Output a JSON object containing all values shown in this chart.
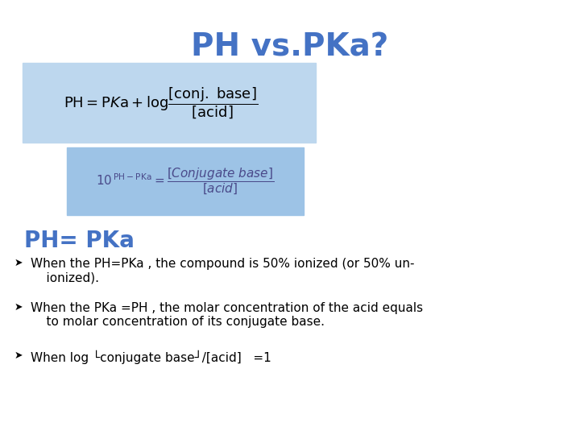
{
  "title": "PH vs.PKa?",
  "title_color": "#4472C4",
  "title_fontsize": 28,
  "title_fontweight": "bold",
  "bg_color": "#ffffff",
  "box1_color": "#BDD7EE",
  "box2_color": "#9DC3E6",
  "formula1": "$\\mathrm{PH = P}\\mathit{K}\\mathrm{a + log}\\dfrac{\\mathrm{[conj.\\ base]}}{\\mathrm{[acid]}}$",
  "formula2": "$10^{\\,\\mathrm{PH-PKa}} = \\dfrac{\\mathit{[Conjugate\\ base]}}{\\mathit{[acid]}}$",
  "subtitle": "PH= PKa",
  "subtitle_color": "#4472C4",
  "subtitle_fontsize": 20,
  "subtitle_fontweight": "bold",
  "bullets": [
    "When the PH=PKa , the compound is 50% ionized (or 50% un-\n    ionized).",
    "When the PKa =PH , the molar concentration of the acid equals\n    to molar concentration of its conjugate base.",
    "When log └conjugate base┘/[acid]   =1"
  ],
  "bullet_fontsize": 11
}
